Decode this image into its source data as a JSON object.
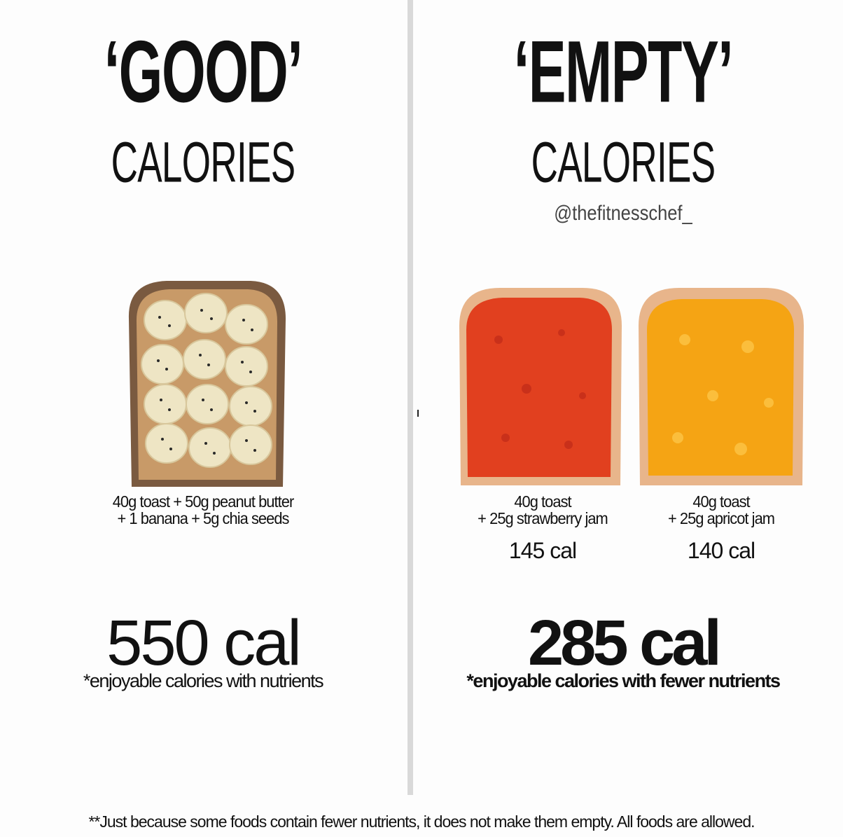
{
  "left": {
    "title": "‘GOOD’",
    "subtitle": "CALORIES",
    "caption_line1": "40g toast + 50g peanut butter",
    "caption_line2": "+ 1 banana + 5g chia seeds",
    "total": "550 cal",
    "note": "*enjoyable calories with nutrients"
  },
  "right": {
    "title": "‘EMPTY’",
    "subtitle": "CALORIES",
    "handle": "@thefitnesschef_",
    "toast1": {
      "line1": "40g toast",
      "line2": "+ 25g strawberry jam",
      "cal": "145 cal"
    },
    "toast2": {
      "line1": "40g toast",
      "line2": "+ 25g apricot jam",
      "cal": "140 cal"
    },
    "total": "285 cal",
    "note": "*enjoyable calories with fewer nutrients"
  },
  "footer": "**Just because some foods contain fewer nutrients, it does not make them empty. All foods are allowed.",
  "colors": {
    "strawberry": "#e1401f",
    "apricot": "#f5a414",
    "bread_crust": "#e8b58b",
    "wholegrain": "#7a5a40",
    "banana": "#eee5c4"
  }
}
